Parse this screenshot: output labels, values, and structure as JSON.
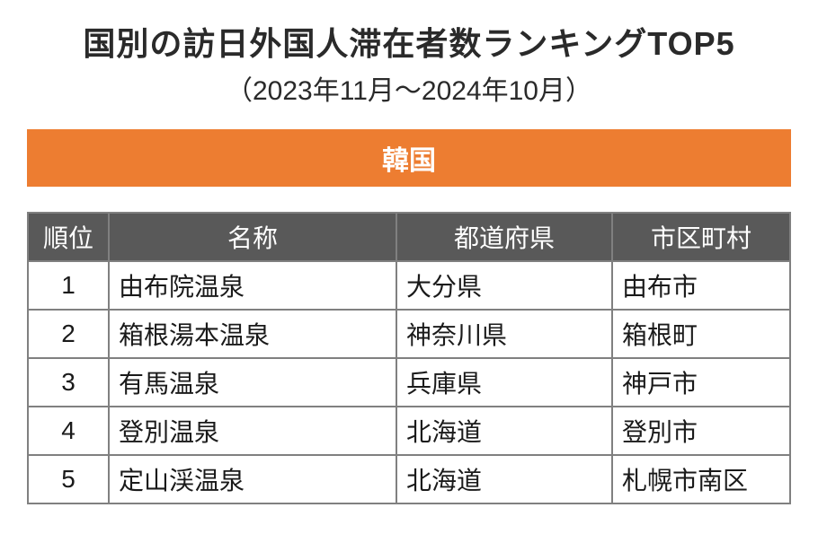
{
  "title": "国別の訪日外国人滞在者数ランキングTOP5",
  "subtitle": "（2023年11月〜2024年10月）",
  "country": "韓国",
  "columns": [
    "順位",
    "名称",
    "都道府県",
    "市区町村"
  ],
  "rows": [
    {
      "rank": "1",
      "name": "由布院温泉",
      "pref": "大分県",
      "city": "由布市"
    },
    {
      "rank": "2",
      "name": "箱根湯本温泉",
      "pref": "神奈川県",
      "city": "箱根町"
    },
    {
      "rank": "3",
      "name": "有馬温泉",
      "pref": "兵庫県",
      "city": "神戸市"
    },
    {
      "rank": "4",
      "name": "登別温泉",
      "pref": "北海道",
      "city": "登別市"
    },
    {
      "rank": "5",
      "name": "定山渓温泉",
      "pref": "北海道",
      "city": "札幌市南区"
    }
  ],
  "colors": {
    "country_bar": "#ed7d31",
    "header_bg": "#595959",
    "border": "#808080"
  }
}
